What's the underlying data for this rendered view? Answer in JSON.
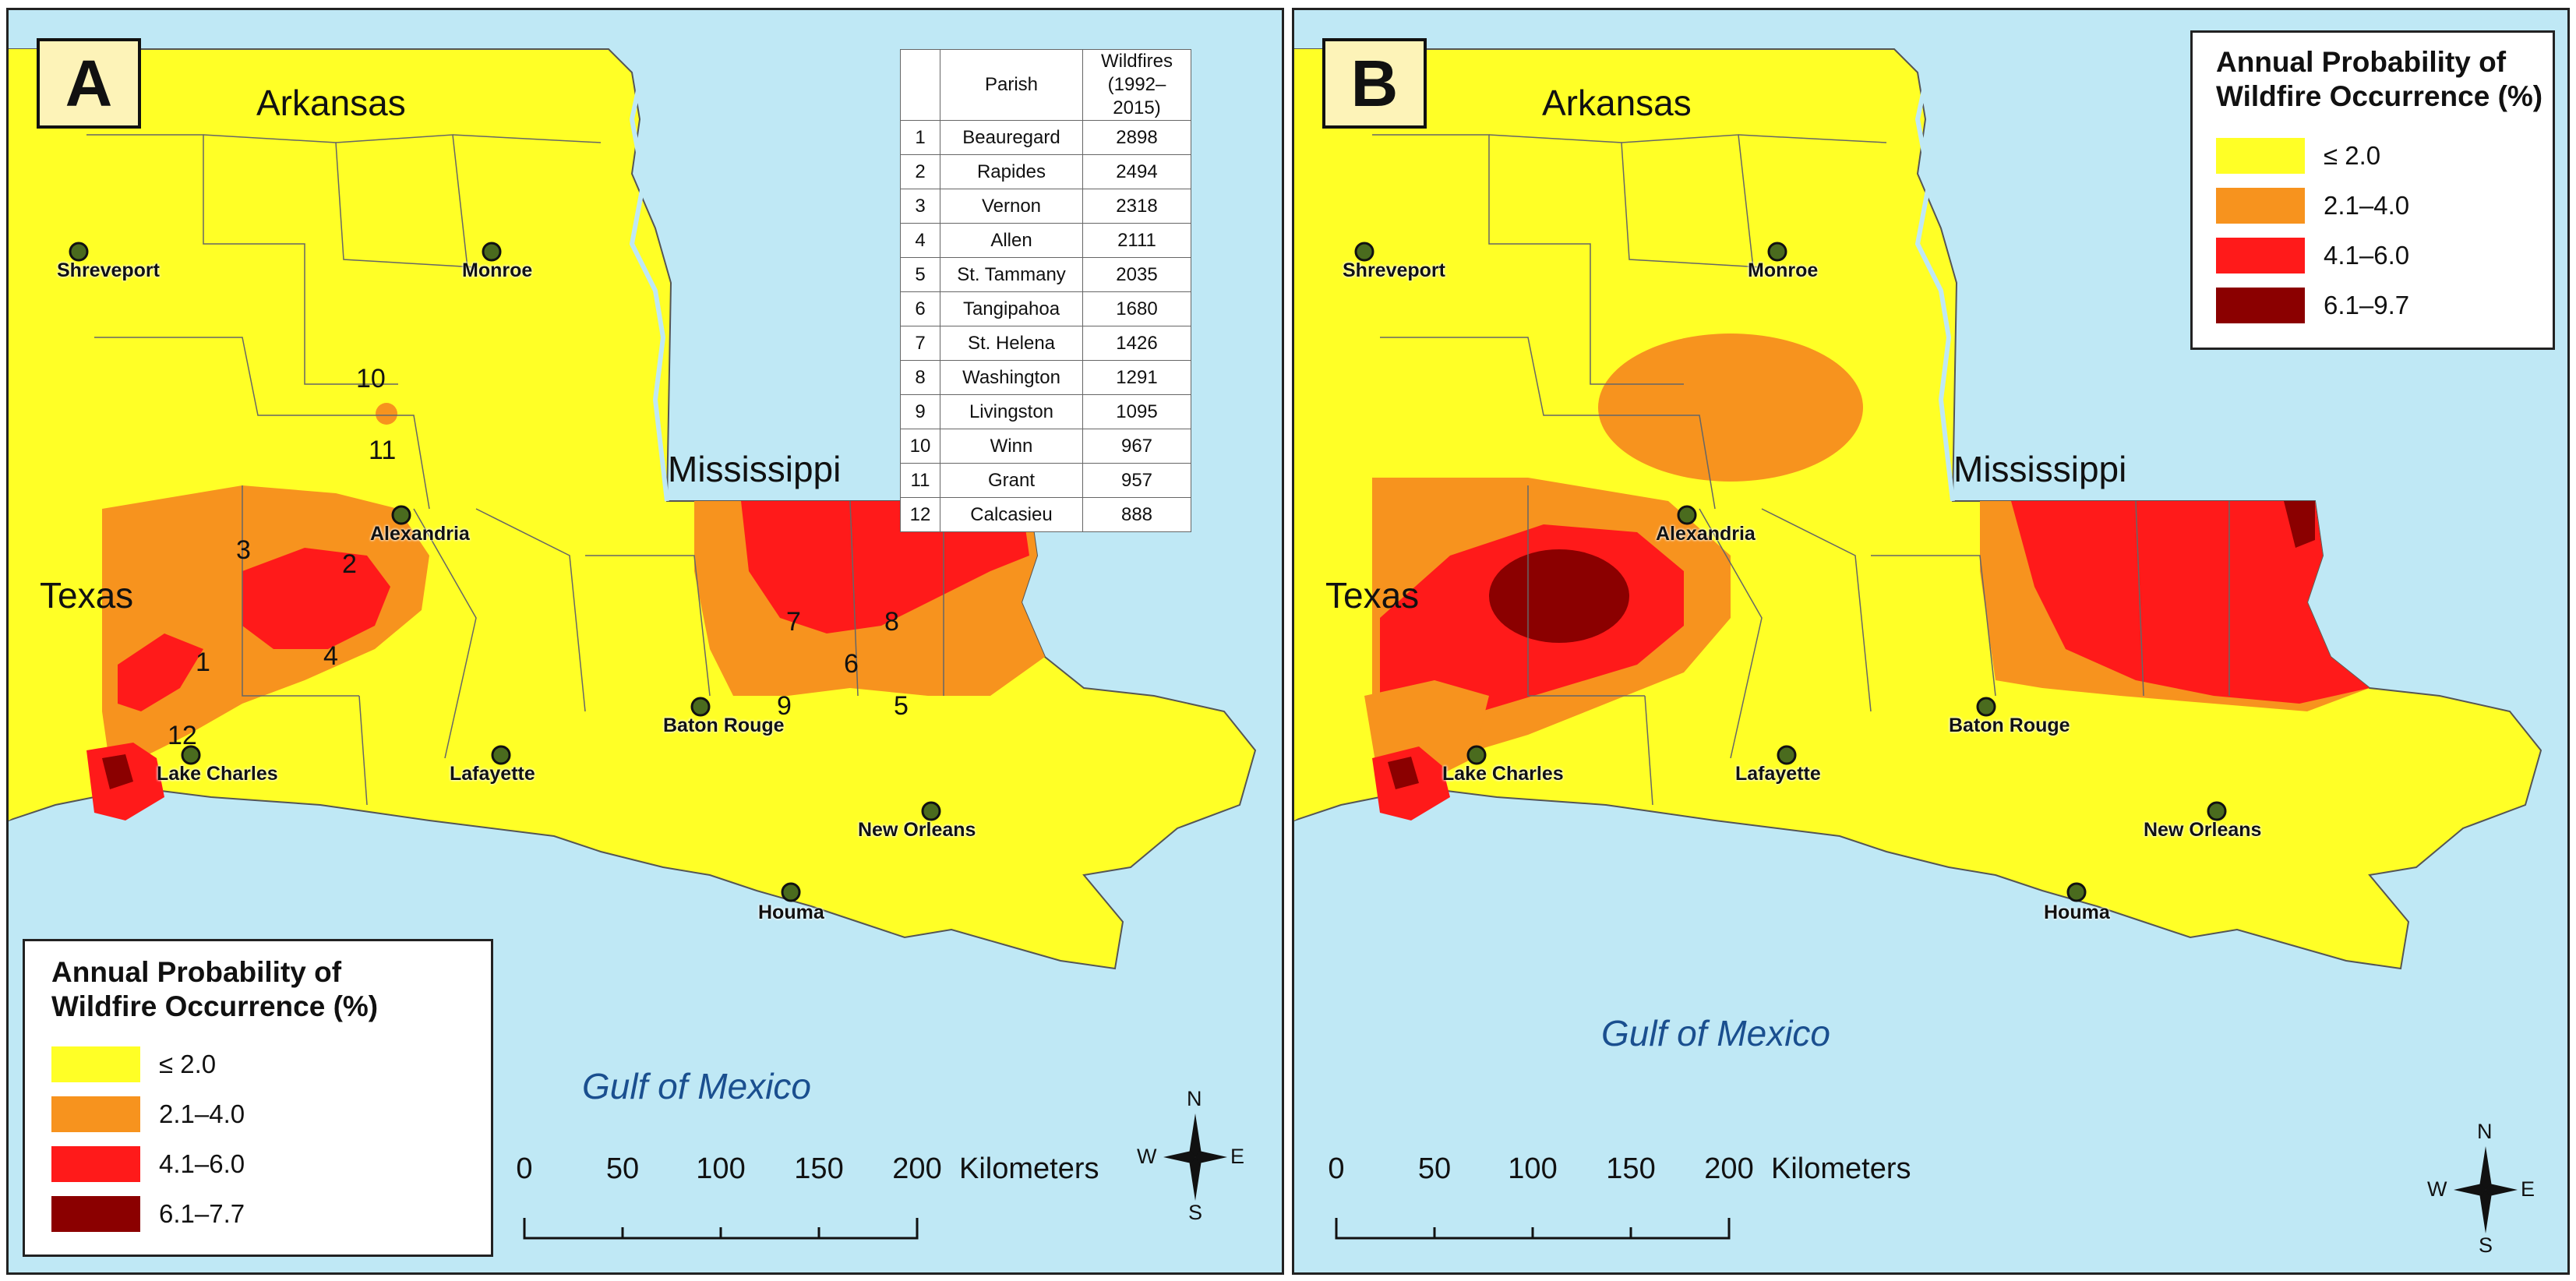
{
  "colors": {
    "water": "#bfe8f5",
    "low": "#ffff26",
    "moderate": "#f7931e",
    "high": "#ff1a1a",
    "very_high": "#8b0000"
  },
  "common": {
    "state_labels": {
      "arkansas": "Arkansas",
      "mississippi": "Mississippi",
      "texas": "Texas"
    },
    "gulf_label": "Gulf of Mexico",
    "cities": [
      "Shreveport",
      "Monroe",
      "Alexandria",
      "Baton Rouge",
      "Lake Charles",
      "Lafayette",
      "New Orleans",
      "Houma"
    ],
    "legend_title_line1": "Annual Probability of",
    "legend_title_line2": "Wildfire Occurrence (%)",
    "scale": {
      "ticks": [
        "0",
        "50",
        "100",
        "150",
        "200"
      ],
      "unit": "Kilometers"
    },
    "compass": {
      "n": "N",
      "s": "S",
      "e": "E",
      "w": "W"
    }
  },
  "panel_a": {
    "letter": "A",
    "legend_classes": [
      "≤ 2.0",
      "2.1–4.0",
      "4.1–6.0",
      "6.1–7.7"
    ],
    "table": {
      "header_parish": "Parish",
      "header_wildfires_1": "Wildfires",
      "header_wildfires_2": "(1992–2015)",
      "rows": [
        {
          "rank": "1",
          "parish": "Beauregard",
          "wildfires": "2898"
        },
        {
          "rank": "2",
          "parish": "Rapides",
          "wildfires": "2494"
        },
        {
          "rank": "3",
          "parish": "Vernon",
          "wildfires": "2318"
        },
        {
          "rank": "4",
          "parish": "Allen",
          "wildfires": "2111"
        },
        {
          "rank": "5",
          "parish": "St. Tammany",
          "wildfires": "2035"
        },
        {
          "rank": "6",
          "parish": "Tangipahoa",
          "wildfires": "1680"
        },
        {
          "rank": "7",
          "parish": "St. Helena",
          "wildfires": "1426"
        },
        {
          "rank": "8",
          "parish": "Washington",
          "wildfires": "1291"
        },
        {
          "rank": "9",
          "parish": "Livingston",
          "wildfires": "1095"
        },
        {
          "rank": "10",
          "parish": "Winn",
          "wildfires": "967"
        },
        {
          "rank": "11",
          "parish": "Grant",
          "wildfires": "957"
        },
        {
          "rank": "12",
          "parish": "Calcasieu",
          "wildfires": "888"
        }
      ]
    },
    "map_numbers": [
      "1",
      "2",
      "3",
      "4",
      "5",
      "6",
      "7",
      "8",
      "9",
      "10",
      "11",
      "12"
    ]
  },
  "panel_b": {
    "letter": "B",
    "legend_classes": [
      "≤ 2.0",
      "2.1–4.0",
      "4.1–6.0",
      "6.1–9.7"
    ]
  }
}
